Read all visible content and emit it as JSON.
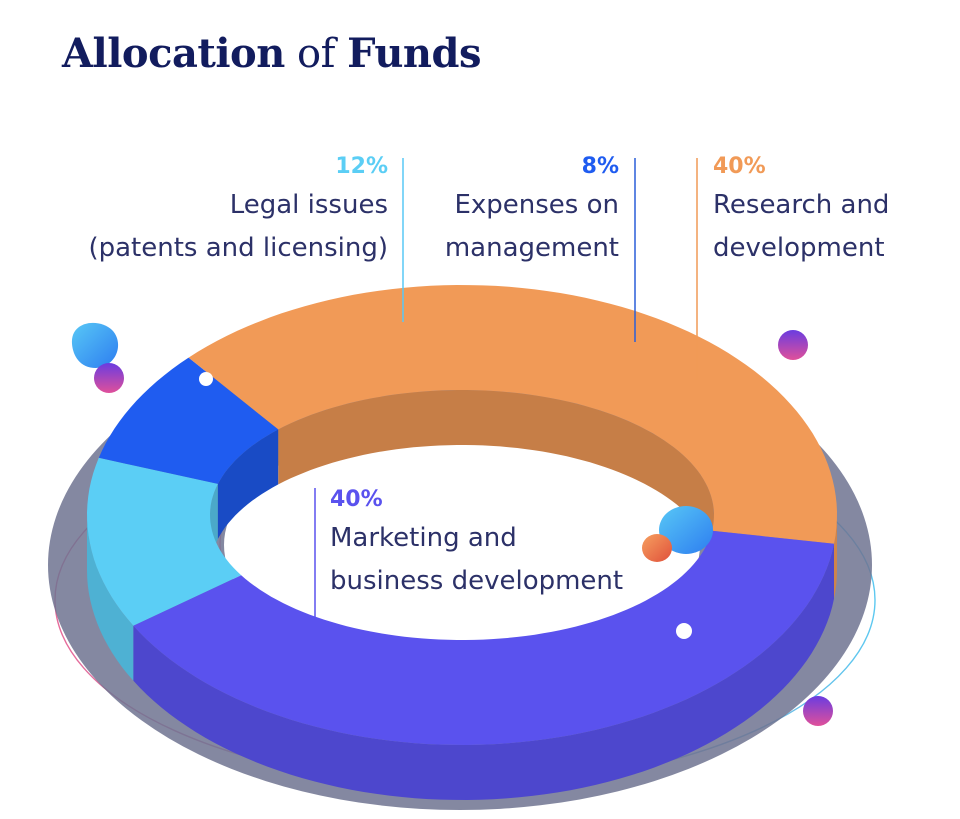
{
  "title": {
    "part1": "Allocation",
    "part2": "of",
    "part3": "Funds"
  },
  "chart_data": {
    "type": "pie",
    "style": "3d-donut",
    "title": "Allocation of Funds",
    "slices": [
      {
        "label_line1": "Legal issues",
        "label_line2": "(patents and licensing)",
        "percent_label": "12%",
        "value": 12,
        "color": "#5bcef5"
      },
      {
        "label_line1": "Expenses on",
        "label_line2": "management",
        "percent_label": "8%",
        "value": 8,
        "color": "#1f5cf0"
      },
      {
        "label_line1": "Research and",
        "label_line2": "development",
        "percent_label": "40%",
        "value": 40,
        "color": "#f19a57"
      },
      {
        "label_line1": "Marketing and",
        "label_line2": "business development",
        "percent_label": "40%",
        "value": 40,
        "color": "#5a52ee"
      }
    ]
  }
}
